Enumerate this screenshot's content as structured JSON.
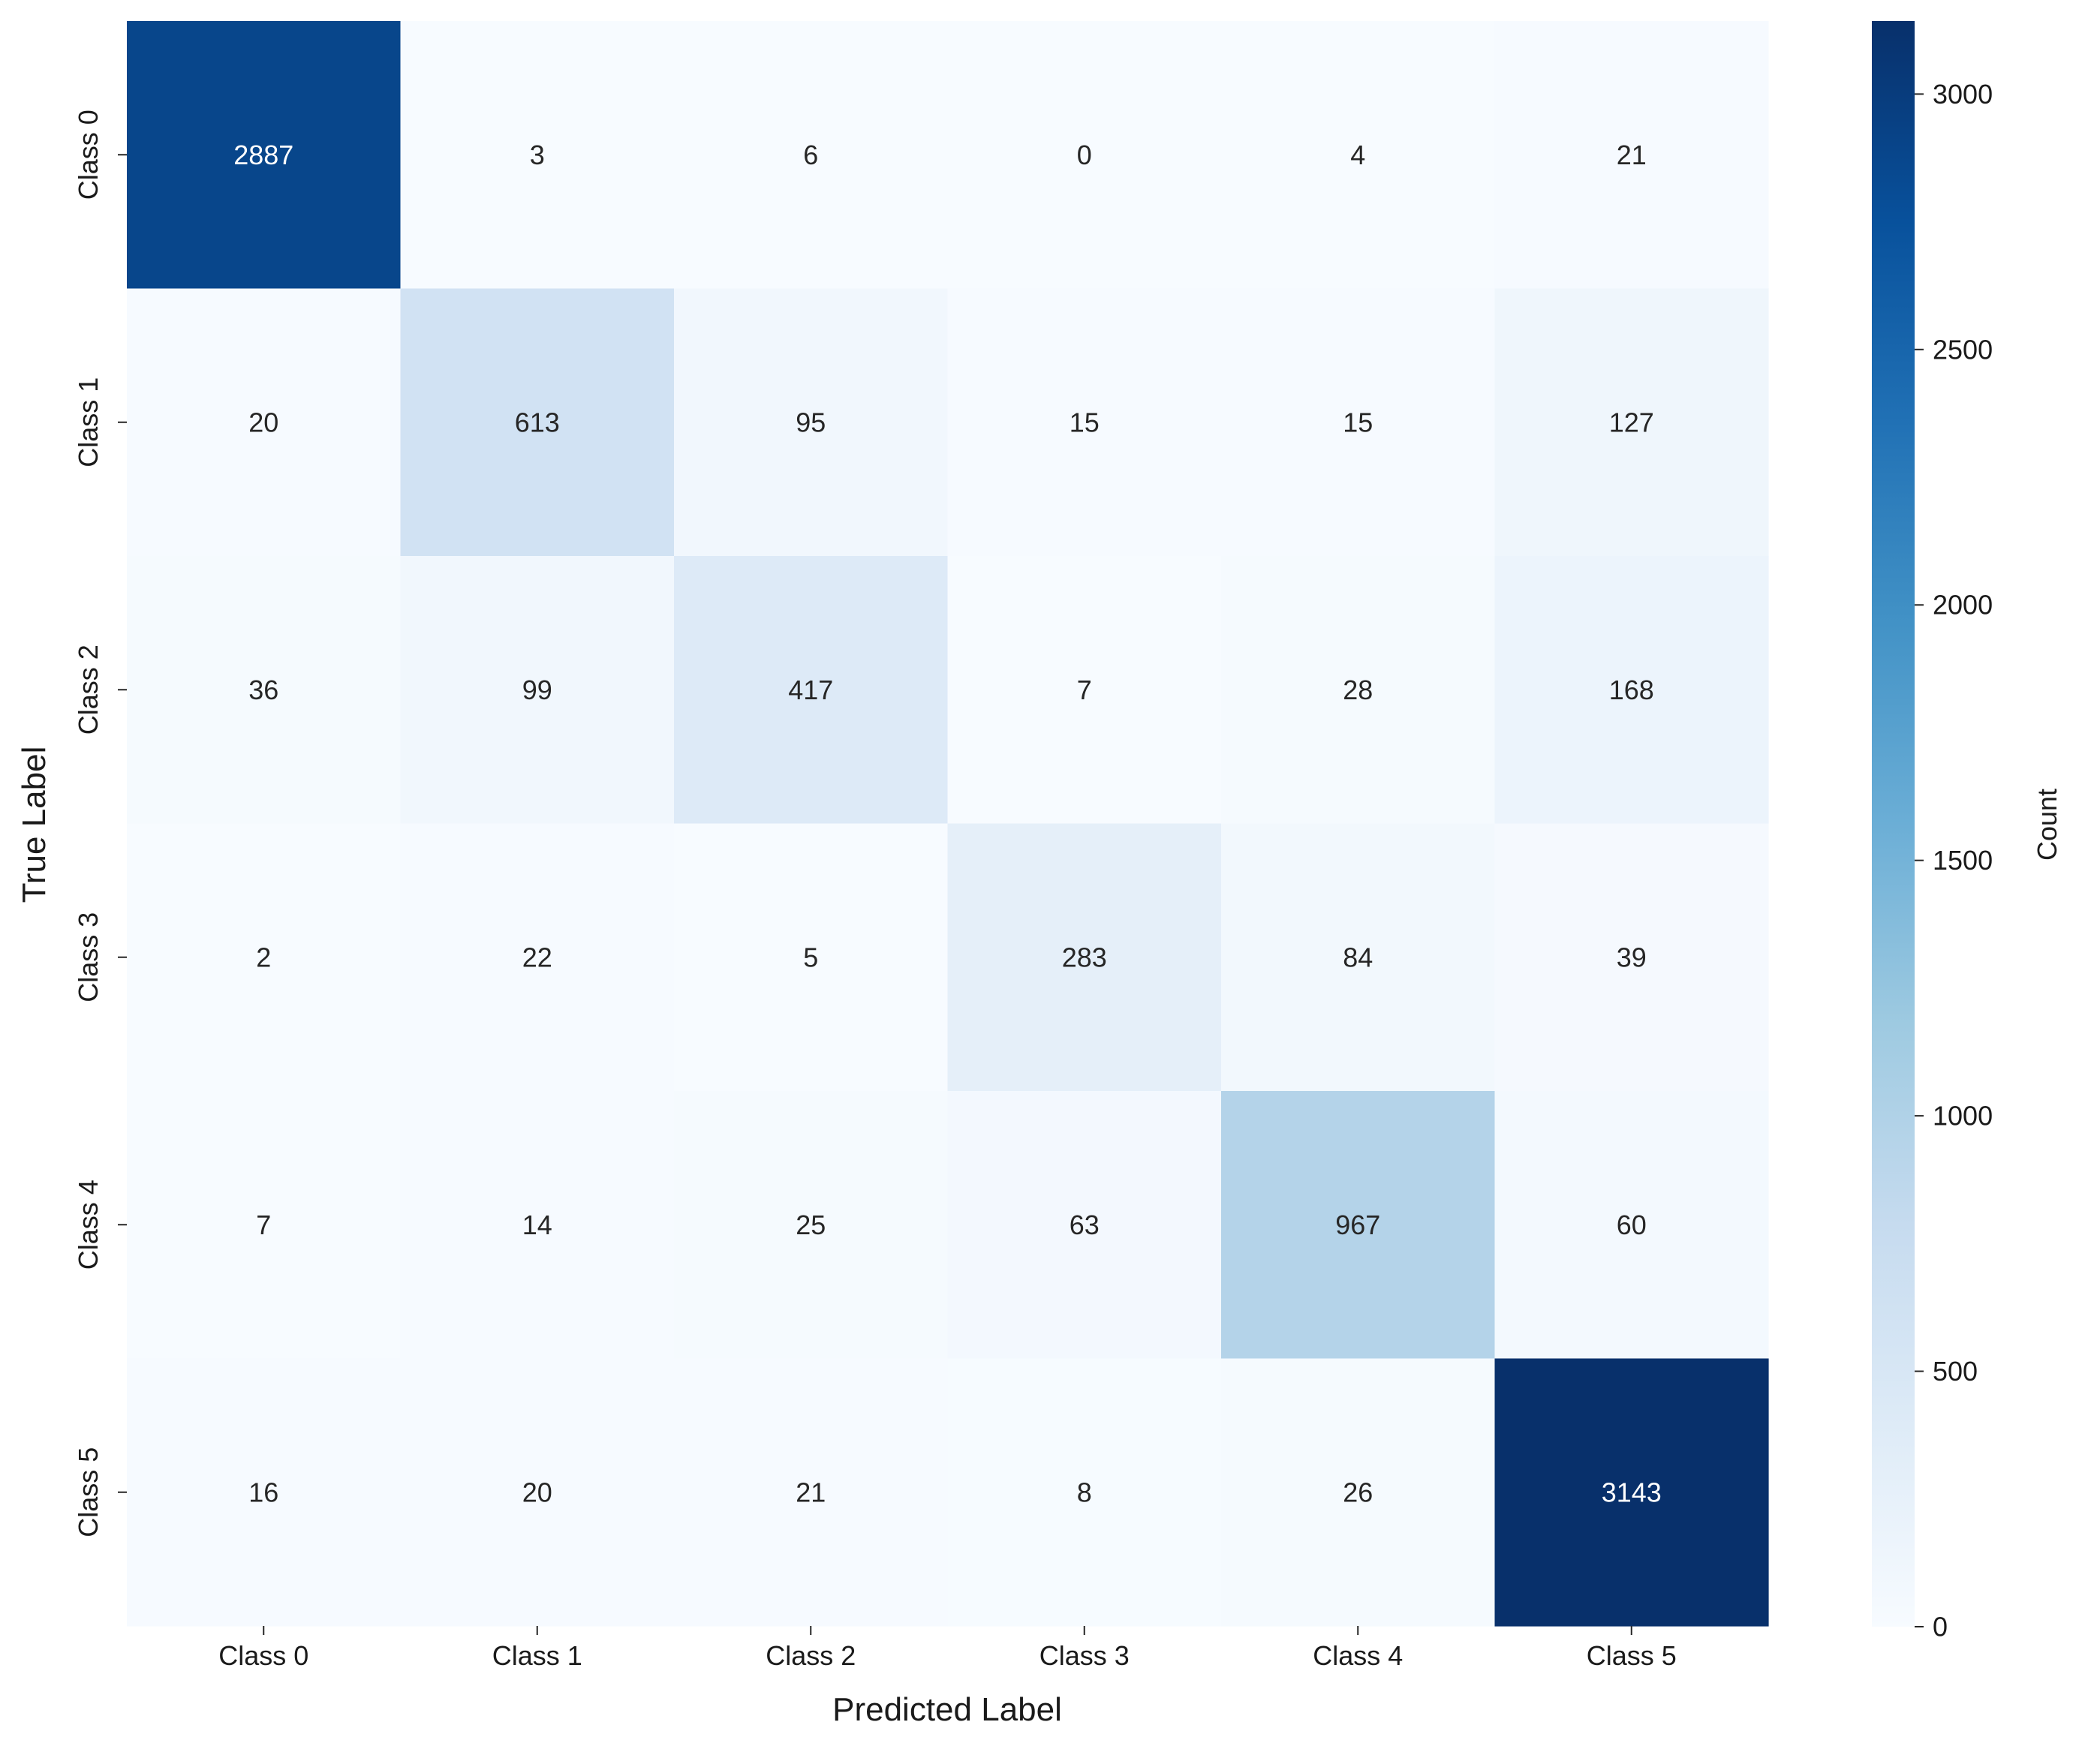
{
  "chart_data": {
    "type": "heatmap",
    "title": "",
    "xlabel": "Predicted Label",
    "ylabel": "True Label",
    "x_categories": [
      "Class 0",
      "Class 1",
      "Class 2",
      "Class 3",
      "Class 4",
      "Class 5"
    ],
    "y_categories": [
      "Class 0",
      "Class 1",
      "Class 2",
      "Class 3",
      "Class 4",
      "Class 5"
    ],
    "values": [
      [
        2887,
        3,
        6,
        0,
        4,
        21
      ],
      [
        20,
        613,
        95,
        15,
        15,
        127
      ],
      [
        36,
        99,
        417,
        7,
        28,
        168
      ],
      [
        2,
        22,
        5,
        283,
        84,
        39
      ],
      [
        7,
        14,
        25,
        63,
        967,
        60
      ],
      [
        16,
        20,
        21,
        8,
        26,
        3143
      ]
    ],
    "colorbar": {
      "label": "Count",
      "range": [
        0,
        3143
      ],
      "ticks": [
        0,
        500,
        1000,
        1500,
        2000,
        2500,
        3000
      ],
      "colormap": "Blues"
    },
    "annotation_colors": {
      "dark_text": "#262626",
      "light_text": "#ffffff"
    },
    "grid": false
  }
}
